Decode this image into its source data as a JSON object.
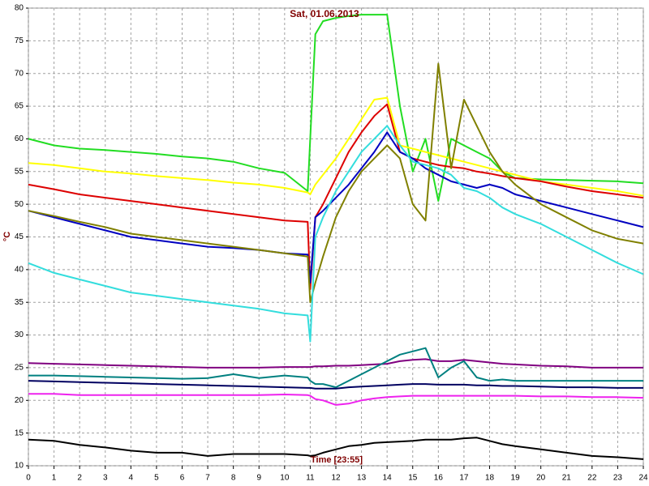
{
  "chart_data": {
    "type": "line",
    "title": "Sat, 01.06.2013",
    "x_label": "Time [23:55]",
    "y_label": "°C",
    "x": [
      0,
      1,
      2,
      3,
      4,
      5,
      6,
      7,
      8,
      9,
      10,
      10.9,
      11,
      11.2,
      11.5,
      12,
      12.5,
      13,
      13.5,
      14,
      14.5,
      15,
      15.5,
      16,
      16.5,
      17,
      17.5,
      18,
      18.5,
      19,
      20,
      21,
      22,
      23,
      24
    ],
    "xlim": [
      0,
      24
    ],
    "xticks": [
      0,
      1,
      2,
      3,
      4,
      5,
      6,
      7,
      8,
      9,
      10,
      11,
      12,
      13,
      14,
      15,
      16,
      17,
      18,
      19,
      20,
      21,
      22,
      23,
      24
    ],
    "ylim": [
      10,
      80
    ],
    "yticks": [
      10,
      15,
      20,
      25,
      30,
      35,
      40,
      45,
      50,
      55,
      60,
      65,
      70,
      75,
      80
    ],
    "grid": true,
    "series": [
      {
        "color": "#22dd22",
        "values": [
          60,
          59,
          58.5,
          58.3,
          58,
          57.7,
          57.3,
          57,
          56.5,
          55.5,
          54.8,
          52,
          60,
          76,
          78,
          78.5,
          78.8,
          79,
          79,
          79,
          65,
          55,
          60,
          50.5,
          60,
          59,
          58,
          57,
          55,
          54,
          53.8,
          53.7,
          53.6,
          53.5,
          53.2
        ]
      },
      {
        "color": "#ffff00",
        "values": [
          56.3,
          56,
          55.5,
          55,
          54.7,
          54.3,
          54,
          53.7,
          53.3,
          53,
          52.5,
          51.8,
          51.5,
          53,
          54.5,
          57,
          60,
          63,
          66,
          66.3,
          59,
          58.5,
          58,
          57.5,
          57,
          56.5,
          56,
          55.5,
          55,
          54.5,
          53.5,
          53,
          52.5,
          52,
          51.3
        ]
      },
      {
        "color": "#dd0000",
        "values": [
          53,
          52.3,
          51.5,
          51,
          50.5,
          50,
          49.5,
          49,
          48.5,
          48,
          47.5,
          47.3,
          37,
          48,
          50,
          54,
          58,
          61,
          63.5,
          65.3,
          58,
          57,
          56.5,
          56,
          55.7,
          55.5,
          55,
          54.7,
          54.3,
          54,
          53.5,
          52.7,
          52,
          51.5,
          51
        ]
      },
      {
        "color": "#0000c0",
        "values": [
          49,
          48,
          47,
          46,
          45,
          44.5,
          44,
          43.5,
          43.3,
          43,
          42.5,
          42.3,
          38,
          48,
          49,
          51,
          53,
          55.5,
          58,
          61,
          58,
          57,
          55.5,
          54.5,
          53.5,
          53,
          52.5,
          53,
          52.5,
          51.5,
          50.5,
          49.5,
          48.5,
          47.5,
          46.5
        ]
      },
      {
        "color": "#808000",
        "values": [
          49,
          48.2,
          47.3,
          46.5,
          45.5,
          45,
          44.5,
          44,
          43.5,
          43,
          42.5,
          42,
          35,
          38,
          42,
          48,
          52,
          55,
          57,
          59,
          57,
          50,
          47.5,
          71.5,
          55.5,
          66,
          62,
          58,
          55,
          53,
          50,
          48,
          46,
          44.7,
          44
        ]
      },
      {
        "color": "#33dddd",
        "values": [
          41,
          39.5,
          38.5,
          37.5,
          36.5,
          36,
          35.5,
          35,
          34.5,
          34,
          33.3,
          33,
          29,
          45,
          48,
          52,
          55,
          58,
          60,
          62,
          59,
          56.5,
          56,
          55.5,
          54.5,
          52.5,
          52,
          51,
          49.5,
          48.5,
          47,
          45,
          43,
          41,
          39.3
        ]
      },
      {
        "color": "#800080",
        "values": [
          25.7,
          25.6,
          25.5,
          25.4,
          25.3,
          25.2,
          25.1,
          25,
          25,
          25,
          25.1,
          25.1,
          25.1,
          25.2,
          25.2,
          25.3,
          25.3,
          25.4,
          25.5,
          25.6,
          26,
          26.2,
          26.3,
          26,
          26,
          26.2,
          26,
          25.8,
          25.6,
          25.5,
          25.3,
          25.2,
          25,
          25,
          25
        ]
      },
      {
        "color": "#008080",
        "values": [
          23.8,
          23.8,
          23.7,
          23.6,
          23.5,
          23.4,
          23.3,
          23.4,
          24,
          23.4,
          23.8,
          23.5,
          23,
          22.5,
          22.5,
          22,
          23,
          24,
          25,
          26,
          27,
          27.5,
          28,
          23.5,
          25,
          26,
          23.5,
          23,
          23.2,
          23,
          23,
          23,
          23,
          23,
          23
        ]
      },
      {
        "color": "#000060",
        "values": [
          23,
          22.9,
          22.8,
          22.7,
          22.6,
          22.5,
          22.4,
          22.3,
          22.2,
          22.1,
          22,
          21.9,
          21.9,
          21.8,
          21.8,
          21.8,
          22,
          22.1,
          22.2,
          22.3,
          22.4,
          22.5,
          22.5,
          22.4,
          22.4,
          22.4,
          22.3,
          22.3,
          22.2,
          22.2,
          22.1,
          22,
          22,
          21.9,
          21.9
        ]
      },
      {
        "color": "#ee22ee",
        "values": [
          21,
          21,
          20.8,
          20.8,
          20.8,
          20.8,
          20.8,
          20.8,
          20.8,
          20.8,
          20.9,
          20.8,
          20.7,
          20.2,
          20,
          19.3,
          19.5,
          20,
          20.3,
          20.5,
          20.6,
          20.7,
          20.7,
          20.7,
          20.7,
          20.7,
          20.7,
          20.7,
          20.7,
          20.7,
          20.6,
          20.6,
          20.5,
          20.5,
          20.4
        ]
      },
      {
        "color": "#000000",
        "values": [
          14,
          13.8,
          13.2,
          12.8,
          12.3,
          12,
          12,
          11.5,
          11.8,
          11.8,
          11.8,
          11.6,
          11.5,
          11.6,
          12,
          12.5,
          13,
          13.2,
          13.5,
          13.6,
          13.7,
          13.8,
          14,
          14,
          14,
          14.2,
          14.3,
          13.8,
          13.3,
          13,
          12.5,
          12,
          11.5,
          11.3,
          11
        ]
      }
    ]
  }
}
